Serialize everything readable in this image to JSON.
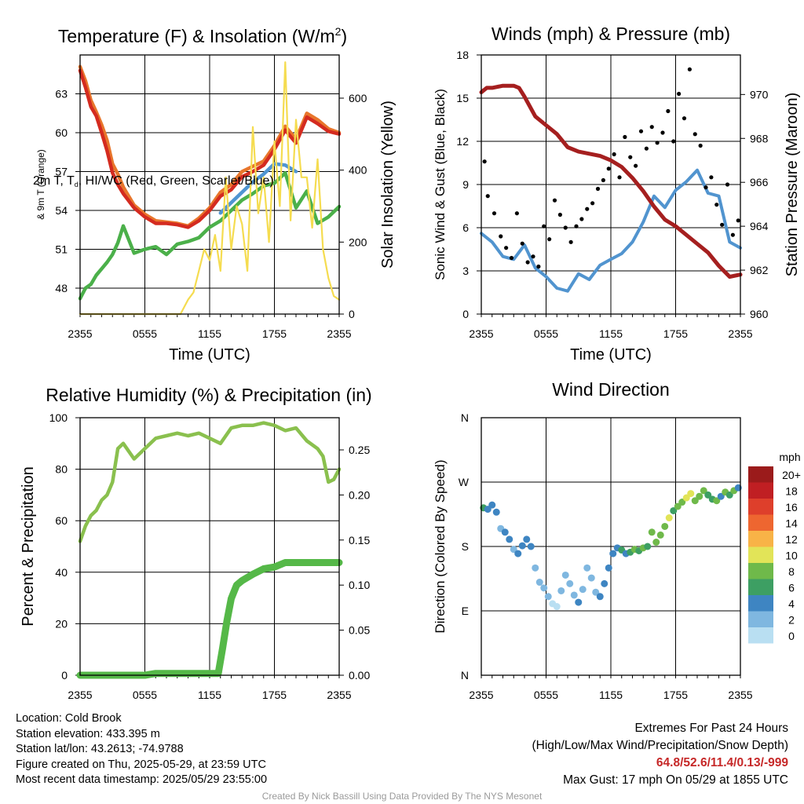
{
  "figure": {
    "time_ticks": [
      "2355",
      "0555",
      "1155",
      "1755",
      "2355"
    ],
    "time_xlabel": "Time (UTC)"
  },
  "chart_data": [
    {
      "id": "temp",
      "type": "line",
      "title": "Temperature (F) & Insolation (W/m",
      "title_sup": "2",
      "title_close": ")",
      "ylabel_main": "2m T, T , HI/WC (Red, Green, Scarlet/Blue)",
      "ylabel_sub": "d",
      "ylabel_line2": "& 9m T (Orange)",
      "ylabel_right": "Solar Insolation (Yellow)",
      "xlabel": "Time (UTC)",
      "ylim": [
        46,
        66
      ],
      "yticks": [
        "48",
        "51",
        "54",
        "57",
        "60",
        "63"
      ],
      "y2lim": [
        0,
        720
      ],
      "y2ticks": [
        "0",
        "200",
        "400",
        "600"
      ],
      "series": [
        {
          "color": "#e8762c",
          "x": [
            0,
            0.5,
            1,
            1.5,
            2,
            2.5,
            3,
            3.5,
            4,
            5,
            6,
            7,
            8,
            9,
            10,
            11,
            12,
            13,
            14,
            15,
            16,
            17,
            18,
            19,
            20,
            21,
            22,
            23,
            24
          ],
          "values": [
            65.1,
            64.0,
            62.5,
            61.6,
            60.6,
            59.4,
            57.6,
            56.8,
            55.8,
            54.4,
            53.7,
            53.2,
            53.1,
            53.0,
            52.8,
            53.4,
            54.2,
            55.4,
            56.0,
            57.0,
            57.4,
            57.8,
            59.0,
            60.5,
            59.5,
            61.5,
            61.0,
            60.3,
            60.0
          ]
        },
        {
          "color": "#d42b20",
          "x": [
            0,
            0.5,
            1,
            1.5,
            2,
            2.5,
            3,
            3.5,
            4,
            5,
            6,
            7,
            8,
            9,
            10,
            11,
            12,
            13,
            14,
            15,
            16,
            17,
            18,
            19,
            20,
            21,
            22,
            23,
            24
          ],
          "values": [
            64.8,
            63.5,
            62.0,
            61.3,
            60.0,
            58.6,
            56.9,
            56.0,
            55.3,
            54.2,
            53.5,
            53.0,
            53.0,
            52.9,
            52.7,
            53.2,
            54.0,
            55.1,
            55.6,
            56.6,
            57.0,
            57.5,
            58.7,
            60.2,
            59.2,
            61.2,
            60.7,
            60.1,
            59.9
          ]
        },
        {
          "color": "#4f95d2",
          "x": [
            13,
            14,
            15,
            16,
            17,
            18,
            19,
            20
          ],
          "values": [
            53.8,
            54.6,
            55.4,
            56.2,
            56.8,
            57.6,
            57.5,
            57.0
          ]
        },
        {
          "color": "#4bb04a",
          "x": [
            0,
            0.5,
            1,
            1.5,
            2,
            2.5,
            3,
            3.5,
            4,
            5,
            6,
            7,
            8,
            9,
            10,
            11,
            12,
            13,
            14,
            15,
            16,
            17,
            18,
            19,
            20,
            21,
            22,
            23,
            24
          ],
          "values": [
            47.2,
            48.0,
            48.3,
            49.0,
            49.5,
            50.0,
            50.6,
            51.5,
            52.8,
            50.7,
            51.0,
            51.2,
            50.6,
            51.4,
            51.6,
            51.9,
            52.7,
            53.2,
            54.0,
            54.8,
            55.3,
            55.9,
            56.1,
            56.9,
            54.2,
            55.5,
            53.0,
            53.5,
            54.3
          ]
        },
        {
          "color": "#f5dc50",
          "axis": "right",
          "x": [
            0,
            9.3,
            10,
            10.5,
            11,
            11.5,
            12,
            12.5,
            13,
            13.5,
            14,
            14.5,
            15,
            15.5,
            16,
            16.5,
            17,
            17.5,
            18,
            18.5,
            19,
            19.5,
            20,
            20.5,
            21,
            21.5,
            22,
            22.5,
            23,
            23.5,
            24
          ],
          "values": [
            0,
            0,
            40,
            60,
            120,
            180,
            150,
            220,
            120,
            380,
            180,
            300,
            250,
            120,
            520,
            280,
            380,
            200,
            480,
            300,
            700,
            260,
            540,
            380,
            380,
            240,
            430,
            180,
            100,
            50,
            40
          ]
        }
      ]
    },
    {
      "id": "wind",
      "type": "line",
      "title": "Winds (mph) & Pressure (mb)",
      "ylabel": "Sonic Wind & Gust (Blue, Black)",
      "ylabel_right": "Station Pressure (Maroon)",
      "xlabel": "Time (UTC)",
      "ylim": [
        0,
        18
      ],
      "yticks": [
        "0",
        "3",
        "6",
        "9",
        "12",
        "15",
        "18"
      ],
      "y2lim": [
        960,
        971.8
      ],
      "y2ticks": [
        "960",
        "962",
        "964",
        "966",
        "968",
        "970"
      ],
      "series": [
        {
          "color": "#5194cf",
          "x": [
            0,
            1,
            2,
            3,
            4,
            5,
            6,
            7,
            8,
            9,
            10,
            11,
            12,
            13,
            14,
            15,
            16,
            17,
            18,
            19,
            20,
            21,
            22,
            23,
            24
          ],
          "values": [
            5.6,
            5.0,
            4.0,
            3.8,
            4.8,
            3.2,
            2.6,
            1.8,
            1.6,
            2.8,
            2.4,
            3.4,
            3.8,
            4.2,
            5.0,
            6.4,
            8.2,
            7.4,
            8.6,
            9.2,
            10.0,
            8.4,
            8.2,
            5.0,
            4.6
          ]
        },
        {
          "color": "#000000",
          "axis": "scatter",
          "x": [
            0.3,
            0.6,
            1.2,
            1.8,
            2.3,
            2.8,
            3.3,
            3.8,
            4.3,
            4.8,
            5.3,
            5.8,
            6.3,
            6.8,
            7.3,
            7.8,
            8.3,
            8.8,
            9.3,
            9.8,
            10.3,
            10.8,
            11.3,
            11.8,
            12.3,
            12.8,
            13.3,
            13.8,
            14.3,
            14.8,
            15.3,
            15.8,
            16.3,
            16.8,
            17.3,
            17.8,
            18.3,
            18.8,
            19.3,
            19.8,
            20.3,
            20.8,
            21.3,
            21.8,
            22.3,
            22.8,
            23.3,
            23.8
          ],
          "values": [
            10.6,
            8.2,
            7.0,
            5.4,
            4.6,
            3.9,
            7.0,
            4.9,
            3.6,
            4.0,
            3.3,
            6.1,
            5.2,
            7.9,
            6.9,
            6.0,
            5.0,
            6.1,
            6.6,
            7.3,
            7.7,
            8.7,
            9.3,
            10.1,
            11.1,
            9.5,
            12.3,
            10.9,
            10.3,
            12.7,
            11.5,
            13.0,
            11.9,
            12.6,
            14.1,
            12.0,
            15.3,
            13.6,
            17.0,
            12.5,
            11.7,
            8.8,
            9.5,
            7.6,
            6.2,
            9.0,
            5.5,
            6.5
          ]
        },
        {
          "color": "#a51f1f",
          "axis": "right",
          "x": [
            0,
            0.5,
            1,
            2,
            3,
            3.5,
            4,
            5,
            6,
            7,
            8,
            9,
            10,
            11,
            12,
            13,
            14,
            15,
            16,
            17,
            18,
            19,
            20,
            21,
            22,
            23,
            24
          ],
          "values": [
            970.1,
            970.3,
            970.3,
            970.4,
            970.4,
            970.3,
            969.9,
            969.0,
            968.6,
            968.2,
            967.6,
            967.4,
            967.3,
            967.2,
            967.0,
            966.7,
            966.2,
            965.6,
            964.9,
            964.3,
            964.0,
            963.6,
            963.2,
            962.8,
            962.2,
            961.7,
            961.8
          ]
        }
      ]
    },
    {
      "id": "rh",
      "type": "line",
      "title": "Relative Humidity (%) & Precipitation (in)",
      "ylabel": "Percent & Precipitation",
      "ylim": [
        0,
        100
      ],
      "yticks": [
        "0",
        "20",
        "40",
        "60",
        "80",
        "100"
      ],
      "y2lim": [
        0,
        0.2857
      ],
      "y2ticks": [
        "0.00",
        "0.05",
        "0.10",
        "0.15",
        "0.20",
        "0.25"
      ],
      "series": [
        {
          "color": "#8ac04e",
          "x": [
            0,
            0.5,
            1,
            1.5,
            2,
            2.5,
            3,
            3.5,
            4,
            5,
            6,
            7,
            8,
            9,
            10,
            11,
            12,
            13,
            14,
            15,
            16,
            17,
            18,
            19,
            20,
            21,
            22,
            22.5,
            23,
            23.5,
            24
          ],
          "values": [
            52,
            58,
            62,
            64,
            68,
            70,
            75,
            88,
            90,
            84,
            88,
            92,
            93,
            94,
            93,
            94,
            92,
            90,
            96,
            97,
            97,
            98,
            97,
            95,
            96,
            91,
            88,
            85,
            75,
            76,
            80
          ]
        },
        {
          "color": "#55b848",
          "axis": "right",
          "x": [
            0,
            1,
            2,
            3,
            4,
            5,
            6,
            7,
            8,
            9,
            10,
            11,
            12,
            12.8,
            13.2,
            13.6,
            14.0,
            14.5,
            15.0,
            16.0,
            17.0,
            18.0,
            19.0,
            20.0,
            21.0,
            22.0,
            23.0,
            24.0
          ],
          "values": [
            0,
            0,
            0,
            0,
            0,
            0,
            0,
            0.002,
            0.002,
            0.002,
            0.002,
            0.002,
            0.002,
            0.002,
            0.03,
            0.06,
            0.085,
            0.1,
            0.105,
            0.112,
            0.118,
            0.12,
            0.125,
            0.125,
            0.125,
            0.125,
            0.125,
            0.125
          ]
        }
      ]
    },
    {
      "id": "dir",
      "type": "scatter",
      "title": "Wind Direction",
      "ylabel": "Direction (Colored By Speed)",
      "yticks": [
        "N",
        "E",
        "S",
        "W",
        "N"
      ],
      "legend_title": "mph",
      "legend_labels": [
        "0",
        "2",
        "4",
        "6",
        "8",
        "10",
        "12",
        "14",
        "16",
        "18",
        "20+"
      ],
      "legend_colors": [
        "#b9dff2",
        "#7fb7e0",
        "#3e85c2",
        "#3d9f63",
        "#6fb94a",
        "#e2e458",
        "#f8b347",
        "#ee6630",
        "#de3f2b",
        "#c01f23",
        "#9b1b1b"
      ],
      "points": [
        {
          "x": 0.2,
          "deg": 234,
          "c": 3
        },
        {
          "x": 0.6,
          "deg": 232,
          "c": 2
        },
        {
          "x": 1.0,
          "deg": 238,
          "c": 2
        },
        {
          "x": 1.4,
          "deg": 228,
          "c": 2
        },
        {
          "x": 1.8,
          "deg": 205,
          "c": 1
        },
        {
          "x": 2.2,
          "deg": 200,
          "c": 2
        },
        {
          "x": 2.6,
          "deg": 190,
          "c": 2
        },
        {
          "x": 3.0,
          "deg": 176,
          "c": 1
        },
        {
          "x": 3.4,
          "deg": 170,
          "c": 2
        },
        {
          "x": 3.8,
          "deg": 181,
          "c": 2
        },
        {
          "x": 4.2,
          "deg": 190,
          "c": 2
        },
        {
          "x": 4.6,
          "deg": 180,
          "c": 2
        },
        {
          "x": 5.0,
          "deg": 150,
          "c": 1
        },
        {
          "x": 5.4,
          "deg": 130,
          "c": 1
        },
        {
          "x": 5.8,
          "deg": 122,
          "c": 1
        },
        {
          "x": 6.2,
          "deg": 110,
          "c": 1
        },
        {
          "x": 6.6,
          "deg": 100,
          "c": 0
        },
        {
          "x": 7.0,
          "deg": 96,
          "c": 0
        },
        {
          "x": 7.4,
          "deg": 118,
          "c": 1
        },
        {
          "x": 7.8,
          "deg": 140,
          "c": 1
        },
        {
          "x": 8.2,
          "deg": 128,
          "c": 1
        },
        {
          "x": 8.6,
          "deg": 112,
          "c": 1
        },
        {
          "x": 9.0,
          "deg": 102,
          "c": 2
        },
        {
          "x": 9.4,
          "deg": 120,
          "c": 1
        },
        {
          "x": 9.8,
          "deg": 150,
          "c": 1
        },
        {
          "x": 10.2,
          "deg": 136,
          "c": 1
        },
        {
          "x": 10.6,
          "deg": 116,
          "c": 1
        },
        {
          "x": 11.0,
          "deg": 110,
          "c": 2
        },
        {
          "x": 11.4,
          "deg": 128,
          "c": 2
        },
        {
          "x": 11.8,
          "deg": 150,
          "c": 2
        },
        {
          "x": 12.2,
          "deg": 170,
          "c": 2
        },
        {
          "x": 12.6,
          "deg": 178,
          "c": 2
        },
        {
          "x": 13.0,
          "deg": 175,
          "c": 3
        },
        {
          "x": 13.4,
          "deg": 170,
          "c": 2
        },
        {
          "x": 13.8,
          "deg": 172,
          "c": 3
        },
        {
          "x": 14.2,
          "deg": 176,
          "c": 4
        },
        {
          "x": 14.6,
          "deg": 174,
          "c": 3
        },
        {
          "x": 15.0,
          "deg": 178,
          "c": 4
        },
        {
          "x": 15.4,
          "deg": 180,
          "c": 3
        },
        {
          "x": 15.8,
          "deg": 200,
          "c": 4
        },
        {
          "x": 16.2,
          "deg": 186,
          "c": 4
        },
        {
          "x": 16.6,
          "deg": 196,
          "c": 4
        },
        {
          "x": 17.0,
          "deg": 208,
          "c": 4
        },
        {
          "x": 17.4,
          "deg": 220,
          "c": 5
        },
        {
          "x": 17.8,
          "deg": 230,
          "c": 3
        },
        {
          "x": 18.2,
          "deg": 236,
          "c": 4
        },
        {
          "x": 18.6,
          "deg": 242,
          "c": 4
        },
        {
          "x": 19.0,
          "deg": 248,
          "c": 5
        },
        {
          "x": 19.4,
          "deg": 254,
          "c": 5
        },
        {
          "x": 19.8,
          "deg": 244,
          "c": 4
        },
        {
          "x": 20.2,
          "deg": 250,
          "c": 4
        },
        {
          "x": 20.6,
          "deg": 258,
          "c": 4
        },
        {
          "x": 21.0,
          "deg": 252,
          "c": 3
        },
        {
          "x": 21.4,
          "deg": 246,
          "c": 3
        },
        {
          "x": 21.8,
          "deg": 244,
          "c": 4
        },
        {
          "x": 22.2,
          "deg": 250,
          "c": 2
        },
        {
          "x": 22.6,
          "deg": 256,
          "c": 4
        },
        {
          "x": 23.0,
          "deg": 252,
          "c": 3
        },
        {
          "x": 23.4,
          "deg": 258,
          "c": 4
        },
        {
          "x": 23.8,
          "deg": 262,
          "c": 2
        }
      ]
    }
  ],
  "footer": {
    "location": "Location: Cold Brook",
    "elevation": "Station elevation: 433.395 m",
    "latlon": "Station lat/lon: 43.2613; -74.9788",
    "created": "Figure created on Thu, 2025-05-29, at 23:59 UTC",
    "recent": "Most recent data timestamp: 2025/05/29 23:55:00",
    "extremes_title": "Extremes For Past 24 Hours",
    "extremes_subtitle": "(High/Low/Max Wind/Precipitation/Snow Depth)",
    "extremes_values": "64.8/52.6/11.4/0.13/-999",
    "max_gust": "Max Gust: 17 mph On 05/29 at 1855 UTC",
    "credit": "Created By Nick Bassill Using Data Provided By The NYS Mesonet"
  }
}
